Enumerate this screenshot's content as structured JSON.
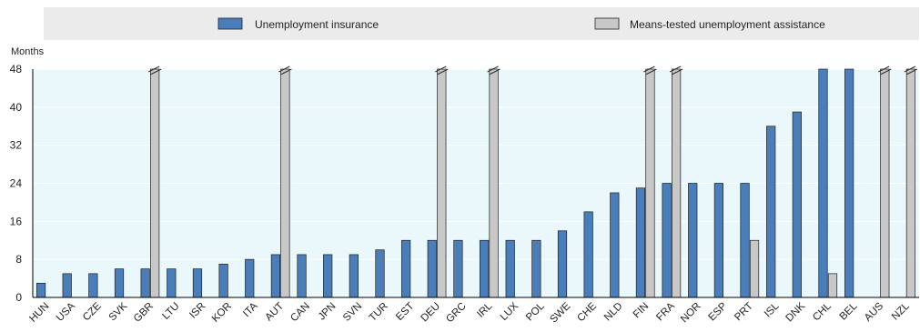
{
  "chart_data": {
    "type": "bar",
    "ylabel": "Months",
    "ylim": [
      0,
      48
    ],
    "yticks": [
      "0",
      "8",
      "16",
      "24",
      "32",
      "40",
      "48"
    ],
    "categories": [
      "HUN",
      "USA",
      "CZE",
      "SVK",
      "GBR",
      "LTU",
      "ISR",
      "KOR",
      "ITA",
      "AUT",
      "CAN",
      "JPN",
      "SVN",
      "TUR",
      "EST",
      "DEU",
      "GRC",
      "IRL",
      "LUX",
      "POL",
      "SWE",
      "CHE",
      "NLD",
      "FIN",
      "FRA",
      "NOR",
      "ESP",
      "PRT",
      "ISL",
      "DNK",
      "CHL",
      "BEL",
      "AUS",
      "NZL"
    ],
    "series": [
      {
        "name": "Unemployment insurance",
        "color": "#4a7ebb",
        "values": [
          3,
          5,
          5,
          6,
          6,
          6,
          6,
          7,
          8,
          9,
          9,
          9,
          9,
          10,
          12,
          12,
          12,
          12,
          12,
          12,
          14,
          18,
          22,
          23,
          24,
          24,
          24,
          24,
          36,
          39,
          48,
          48,
          null,
          null
        ]
      },
      {
        "name": "Means-tested unemployment assistance",
        "color": "#c8c8c8",
        "values": [
          null,
          null,
          null,
          null,
          48,
          null,
          null,
          null,
          null,
          48,
          null,
          null,
          null,
          null,
          null,
          48,
          null,
          48,
          null,
          null,
          null,
          null,
          null,
          48,
          48,
          null,
          null,
          12,
          null,
          null,
          5,
          null,
          48,
          48
        ]
      }
    ],
    "unlimited_duration": [
      "GBR",
      "AUT",
      "DEU",
      "IRL",
      "FIN",
      "FRA",
      "CHL",
      "BEL",
      "AUS",
      "NZL"
    ],
    "legend_position": "top"
  },
  "colors": {
    "plot_background": "#eaf7fb",
    "legend_background": "#ebebeb"
  }
}
